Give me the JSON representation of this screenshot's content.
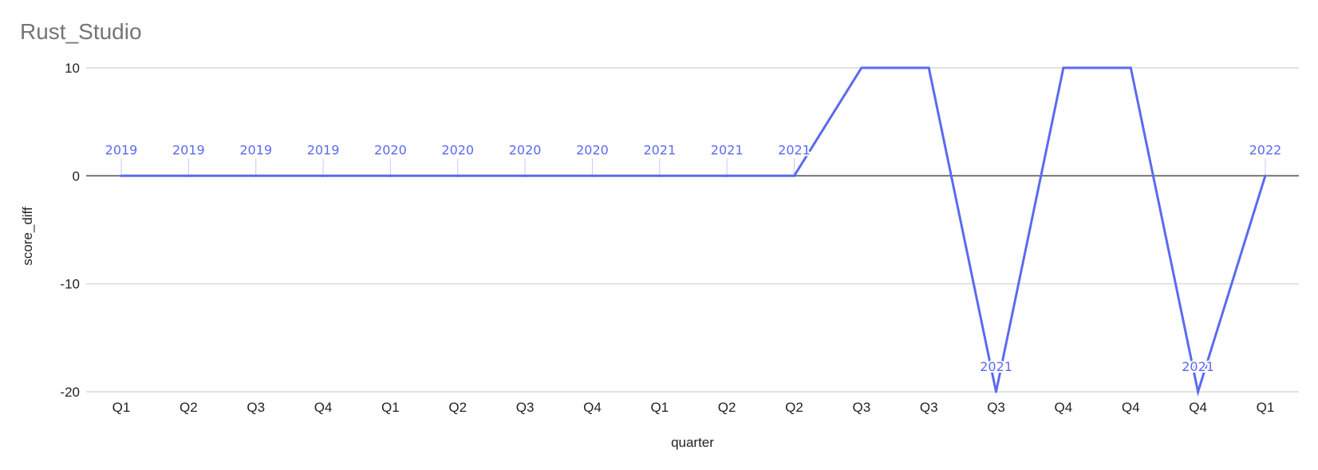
{
  "chart_data": {
    "type": "line",
    "title": "Rust_Studio",
    "xlabel": "quarter",
    "ylabel": "score_diff",
    "ylim": [
      -20,
      10
    ],
    "yticks": [
      10,
      0,
      -10,
      -20
    ],
    "grid": true,
    "legend": "none",
    "line_color": "#5b6af0",
    "categories": [
      "Q1",
      "Q2",
      "Q3",
      "Q4",
      "Q1",
      "Q2",
      "Q3",
      "Q4",
      "Q1",
      "Q2",
      "Q2",
      "Q3",
      "Q3",
      "Q3",
      "Q4",
      "Q4",
      "Q4",
      "Q1"
    ],
    "series": [
      {
        "values": [
          0,
          0,
          0,
          0,
          0,
          0,
          0,
          0,
          0,
          0,
          0,
          10,
          10,
          -20,
          10,
          10,
          -20,
          0
        ]
      }
    ],
    "data_labels": [
      "2019",
      "2019",
      "2019",
      "2019",
      "2020",
      "2020",
      "2020",
      "2020",
      "2021",
      "2021",
      "2021",
      "",
      "",
      "2021",
      "",
      "",
      "2021",
      "2022"
    ]
  }
}
